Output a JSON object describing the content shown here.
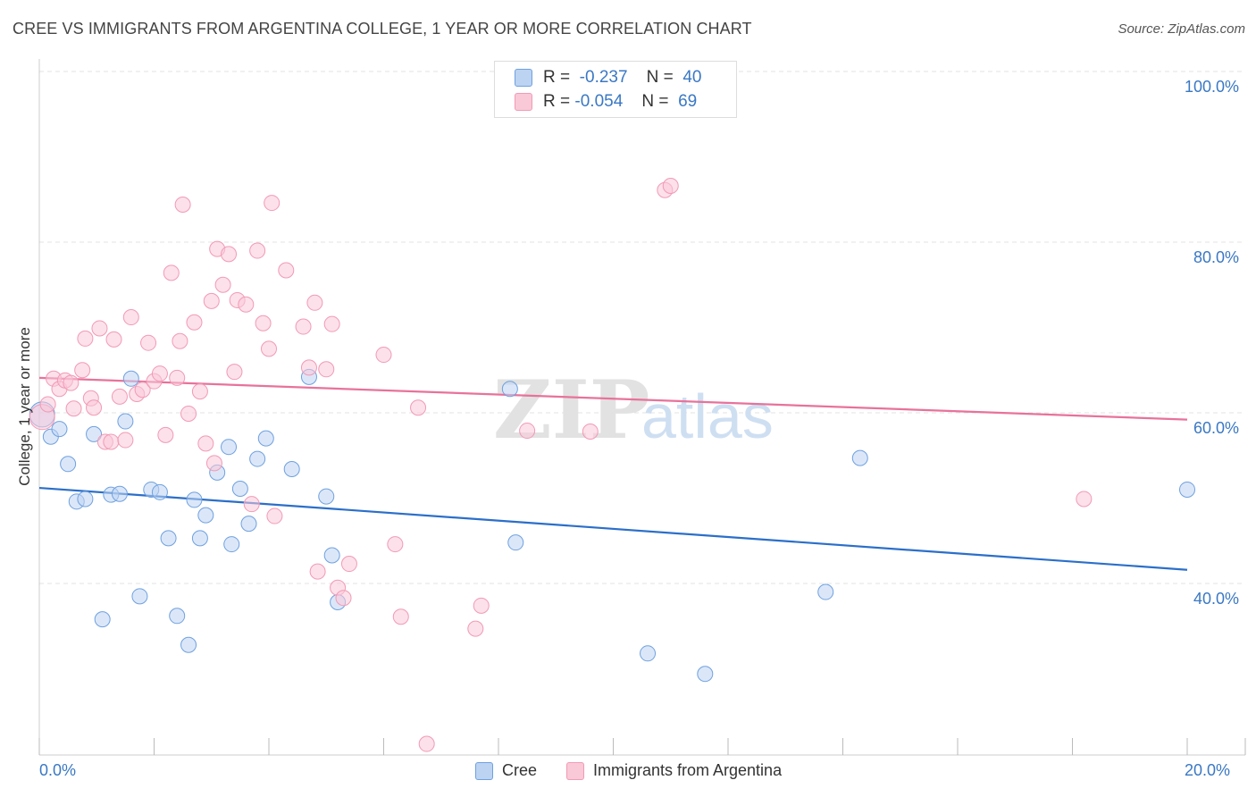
{
  "title": "CREE VS IMMIGRANTS FROM ARGENTINA COLLEGE, 1 YEAR OR MORE CORRELATION CHART",
  "source": "Source: ZipAtlas.com",
  "watermark": {
    "zip": "ZIP",
    "atlas": "atlas"
  },
  "legend": {
    "rows": [
      {
        "r_label": "R =",
        "r_value": "-0.237",
        "n_label": "N =",
        "n_value": "40"
      },
      {
        "r_label": "R =",
        "r_value": "-0.054",
        "n_label": "N =",
        "n_value": "69"
      }
    ]
  },
  "bottom_legend": [
    "Cree",
    "Immigrants from Argentina"
  ],
  "chart_data": {
    "type": "scatter",
    "title": "CREE VS IMMIGRANTS FROM ARGENTINA COLLEGE, 1 YEAR OR MORE CORRELATION CHART",
    "xlabel": "",
    "ylabel": "College, 1 year or more",
    "xlim": [
      0,
      20
    ],
    "ylim": [
      20,
      102
    ],
    "x_tick_labels": [
      "0.0%",
      "20.0%"
    ],
    "y_tick_labels": [
      "100.0%",
      "80.0%",
      "60.0%",
      "40.0%"
    ],
    "y_tick_values": [
      100,
      80,
      60,
      40
    ],
    "grid": true,
    "legend_position": "top-center",
    "colors": {
      "cree": "#6fa1e0",
      "argentina": "#f29ab5",
      "cree_line": "#2b6fc9",
      "argentina_line": "#e8729b",
      "axis_text": "#3a78c4"
    },
    "series": [
      {
        "name": "Cree",
        "r": -0.237,
        "n": 40,
        "trend": {
          "x": [
            0,
            20
          ],
          "y": [
            51.2,
            41.6
          ]
        },
        "points": [
          [
            0.05,
            59.8
          ],
          [
            0.2,
            57.2
          ],
          [
            0.35,
            58.1
          ],
          [
            0.5,
            54.0
          ],
          [
            0.65,
            49.6
          ],
          [
            0.8,
            49.9
          ],
          [
            0.95,
            57.5
          ],
          [
            1.1,
            35.8
          ],
          [
            1.25,
            50.4
          ],
          [
            1.4,
            50.5
          ],
          [
            1.5,
            59.0
          ],
          [
            1.6,
            64.0
          ],
          [
            1.75,
            38.5
          ],
          [
            1.95,
            51.0
          ],
          [
            2.1,
            50.7
          ],
          [
            2.25,
            45.3
          ],
          [
            2.4,
            36.2
          ],
          [
            2.6,
            32.8
          ],
          [
            2.7,
            49.8
          ],
          [
            2.8,
            45.3
          ],
          [
            2.9,
            48.0
          ],
          [
            3.1,
            53.0
          ],
          [
            3.3,
            56.0
          ],
          [
            3.35,
            44.6
          ],
          [
            3.5,
            51.1
          ],
          [
            3.65,
            47.0
          ],
          [
            3.8,
            54.6
          ],
          [
            3.95,
            57.0
          ],
          [
            4.4,
            53.4
          ],
          [
            4.7,
            64.2
          ],
          [
            5.0,
            50.2
          ],
          [
            5.1,
            43.3
          ],
          [
            5.2,
            37.8
          ],
          [
            8.2,
            62.8
          ],
          [
            8.3,
            44.8
          ],
          [
            10.6,
            31.8
          ],
          [
            11.6,
            29.4
          ],
          [
            13.7,
            39.0
          ],
          [
            14.3,
            54.7
          ],
          [
            20.0,
            51.0
          ]
        ]
      },
      {
        "name": "Immigrants from Argentina",
        "r": -0.054,
        "n": 69,
        "trend": {
          "x": [
            0,
            20
          ],
          "y": [
            64.1,
            59.2
          ]
        },
        "points": [
          [
            0.05,
            59.5
          ],
          [
            0.15,
            61.0
          ],
          [
            0.25,
            64.0
          ],
          [
            0.35,
            62.8
          ],
          [
            0.45,
            63.8
          ],
          [
            0.55,
            63.5
          ],
          [
            0.6,
            60.5
          ],
          [
            0.75,
            65.0
          ],
          [
            0.8,
            68.7
          ],
          [
            0.9,
            61.7
          ],
          [
            0.95,
            60.6
          ],
          [
            1.05,
            69.9
          ],
          [
            1.15,
            56.6
          ],
          [
            1.25,
            56.6
          ],
          [
            1.3,
            68.6
          ],
          [
            1.4,
            61.9
          ],
          [
            1.5,
            56.8
          ],
          [
            1.6,
            71.2
          ],
          [
            1.7,
            62.2
          ],
          [
            1.8,
            62.7
          ],
          [
            1.9,
            68.2
          ],
          [
            2.0,
            63.7
          ],
          [
            2.1,
            64.6
          ],
          [
            2.2,
            57.4
          ],
          [
            2.3,
            76.4
          ],
          [
            2.4,
            64.1
          ],
          [
            2.45,
            68.4
          ],
          [
            2.5,
            84.4
          ],
          [
            2.6,
            59.9
          ],
          [
            2.7,
            70.6
          ],
          [
            2.8,
            62.5
          ],
          [
            2.9,
            56.4
          ],
          [
            3.0,
            73.1
          ],
          [
            3.05,
            54.1
          ],
          [
            3.1,
            79.2
          ],
          [
            3.2,
            75.0
          ],
          [
            3.3,
            78.6
          ],
          [
            3.4,
            64.8
          ],
          [
            3.45,
            73.2
          ],
          [
            3.6,
            72.7
          ],
          [
            3.7,
            49.3
          ],
          [
            3.8,
            79.0
          ],
          [
            3.9,
            70.5
          ],
          [
            4.0,
            67.5
          ],
          [
            4.05,
            84.6
          ],
          [
            4.1,
            47.9
          ],
          [
            4.3,
            76.7
          ],
          [
            4.6,
            70.1
          ],
          [
            4.7,
            65.3
          ],
          [
            4.8,
            72.9
          ],
          [
            4.85,
            41.4
          ],
          [
            5.0,
            65.1
          ],
          [
            5.1,
            70.4
          ],
          [
            5.2,
            39.5
          ],
          [
            5.3,
            38.3
          ],
          [
            5.4,
            42.3
          ],
          [
            6.0,
            66.8
          ],
          [
            6.2,
            44.6
          ],
          [
            6.3,
            36.1
          ],
          [
            6.6,
            60.6
          ],
          [
            6.75,
            21.2
          ],
          [
            7.6,
            34.7
          ],
          [
            7.7,
            37.4
          ],
          [
            8.5,
            57.9
          ],
          [
            8.6,
            97.0
          ],
          [
            9.6,
            57.8
          ],
          [
            10.9,
            86.1
          ],
          [
            11.0,
            86.6
          ],
          [
            18.2,
            49.9
          ]
        ]
      }
    ]
  }
}
